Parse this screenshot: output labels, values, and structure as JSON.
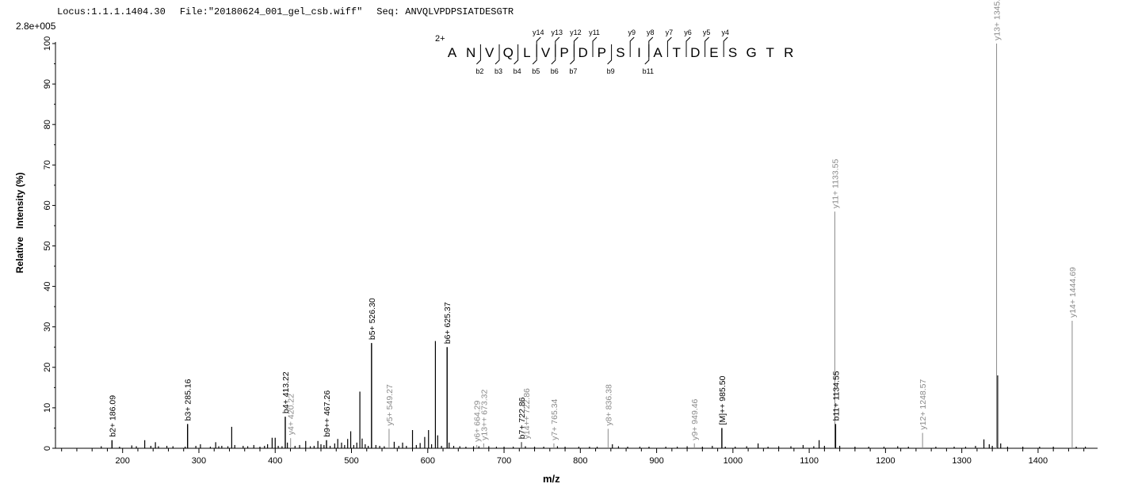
{
  "header": {
    "locus": "Locus:1.1.1.1404.30",
    "file": "File:\"20180624_001_gel_csb.wiff\"",
    "seq": "Seq: ANVQLVPDPSIATDESGTR"
  },
  "colors": {
    "b_ion": "#000000",
    "y_ion": "#8a8a8a",
    "axis": "#000000"
  },
  "chart_data": {
    "type": "bar",
    "title": "",
    "xlabel": "m/z",
    "ylabel": "Relative   Intensity (%)",
    "scale_label": "2.8e+005",
    "xlim": [
      112,
      1478
    ],
    "ylim": [
      0,
      100
    ],
    "x_ticks": [
      200,
      300,
      400,
      500,
      600,
      700,
      800,
      900,
      1000,
      1100,
      1200,
      1300,
      1400
    ],
    "y_ticks": [
      0,
      10,
      20,
      30,
      40,
      50,
      60,
      70,
      80,
      90,
      100
    ],
    "peptide": {
      "charge": "2+",
      "residues": [
        "A",
        "N",
        "V",
        "Q",
        "L",
        "V",
        "P",
        "D",
        "P",
        "S",
        "I",
        "A",
        "T",
        "D",
        "E",
        "S",
        "G",
        "T",
        "R"
      ],
      "b_ions": [
        {
          "label": "b2",
          "after": 2
        },
        {
          "label": "b3",
          "after": 3
        },
        {
          "label": "b4",
          "after": 4
        },
        {
          "label": "b5",
          "after": 5
        },
        {
          "label": "b6",
          "after": 6
        },
        {
          "label": "b7",
          "after": 7
        },
        {
          "label": "b9",
          "after": 9
        },
        {
          "label": "b11",
          "after": 11
        }
      ],
      "y_ions": [
        {
          "label": "y14",
          "after": 5
        },
        {
          "label": "y13",
          "after": 6
        },
        {
          "label": "y12",
          "after": 7
        },
        {
          "label": "y11",
          "after": 8
        },
        {
          "label": "y9",
          "after": 10
        },
        {
          "label": "y8",
          "after": 11
        },
        {
          "label": "y7",
          "after": 12
        },
        {
          "label": "y6",
          "after": 13
        },
        {
          "label": "y5",
          "after": 14
        },
        {
          "label": "y4",
          "after": 15
        }
      ]
    },
    "annotated_peaks": [
      {
        "mz": 186.09,
        "intensity": 2.0,
        "label": "b2+ 186.09",
        "ion": "b"
      },
      {
        "mz": 285.16,
        "intensity": 6.0,
        "label": "b3+ 285.16",
        "ion": "b"
      },
      {
        "mz": 413.22,
        "intensity": 7.8,
        "label": "b4+ 413.22",
        "ion": "b"
      },
      {
        "mz": 420.22,
        "intensity": 2.5,
        "label": "y4+ 420.22",
        "ion": "y"
      },
      {
        "mz": 467.26,
        "intensity": 2.0,
        "label": "b9++ 467.26",
        "ion": "b"
      },
      {
        "mz": 526.3,
        "intensity": 26.0,
        "label": "b5+ 526.30",
        "ion": "b"
      },
      {
        "mz": 549.27,
        "intensity": 4.8,
        "label": "y5+ 549.27",
        "ion": "y"
      },
      {
        "mz": 625.37,
        "intensity": 25.0,
        "label": "b6+ 625.37",
        "ion": "b"
      },
      {
        "mz": 664.29,
        "intensity": 0.8,
        "label": "y6+ 664.29",
        "ion": "y"
      },
      {
        "mz": 673.32,
        "intensity": 1.2,
        "label": "y13++ 673.32",
        "ion": "y"
      },
      {
        "mz": 722.86,
        "intensity": 1.5,
        "label": "b7+ 722.86",
        "ion": "b"
      },
      {
        "mz": 722.86,
        "intensity": 1.5,
        "label": "y14++ 722.86",
        "ion": "y"
      },
      {
        "mz": 765.34,
        "intensity": 1.2,
        "label": "y7+ 765.34",
        "ion": "y"
      },
      {
        "mz": 836.38,
        "intensity": 4.8,
        "label": "y8+ 836.38",
        "ion": "y"
      },
      {
        "mz": 949.46,
        "intensity": 1.2,
        "label": "y9+ 949.46",
        "ion": "y"
      },
      {
        "mz": 985.5,
        "intensity": 5.0,
        "label": "[M]++ 985.50",
        "ion": "b"
      },
      {
        "mz": 1133.55,
        "intensity": 58.5,
        "label": "y11+ 1133.55",
        "ion": "y"
      },
      {
        "mz": 1134.55,
        "intensity": 6.0,
        "label": "b11+ 1134.55",
        "ion": "b"
      },
      {
        "mz": 1248.57,
        "intensity": 3.8,
        "label": "y12+ 1248.57",
        "ion": "y"
      },
      {
        "mz": 1345.62,
        "intensity": 100.0,
        "label": "y13+ 1345.62",
        "ion": "y"
      },
      {
        "mz": 1444.69,
        "intensity": 31.5,
        "label": "y14+ 1444.69",
        "ion": "y"
      }
    ],
    "other_peaks": [
      [
        172,
        0.5
      ],
      [
        196,
        0.4
      ],
      [
        212,
        0.7
      ],
      [
        218,
        0.5
      ],
      [
        229,
        2.0
      ],
      [
        237,
        0.6
      ],
      [
        243,
        1.5
      ],
      [
        247,
        0.5
      ],
      [
        258,
        0.6
      ],
      [
        266,
        0.5
      ],
      [
        282,
        0.4
      ],
      [
        296,
        0.6
      ],
      [
        302,
        1.0
      ],
      [
        315,
        0.4
      ],
      [
        322,
        1.5
      ],
      [
        326,
        0.5
      ],
      [
        330,
        0.6
      ],
      [
        338,
        0.5
      ],
      [
        343,
        5.3
      ],
      [
        347,
        0.8
      ],
      [
        358,
        0.6
      ],
      [
        364,
        0.5
      ],
      [
        372,
        0.8
      ],
      [
        380,
        0.4
      ],
      [
        386,
        0.6
      ],
      [
        390,
        1.0
      ],
      [
        396,
        2.6
      ],
      [
        400,
        2.6
      ],
      [
        404,
        0.6
      ],
      [
        409,
        0.5
      ],
      [
        416,
        1.4
      ],
      [
        426,
        0.6
      ],
      [
        432,
        0.8
      ],
      [
        440,
        1.8
      ],
      [
        446,
        0.5
      ],
      [
        451,
        0.6
      ],
      [
        456,
        1.8
      ],
      [
        460,
        1.0
      ],
      [
        464,
        0.8
      ],
      [
        472,
        0.6
      ],
      [
        478,
        1.2
      ],
      [
        482,
        2.3
      ],
      [
        487,
        1.4
      ],
      [
        491,
        0.8
      ],
      [
        495,
        2.3
      ],
      [
        499,
        4.2
      ],
      [
        503,
        0.8
      ],
      [
        507,
        1.4
      ],
      [
        511,
        14.0
      ],
      [
        514,
        2.4
      ],
      [
        518,
        1.0
      ],
      [
        522,
        0.6
      ],
      [
        532,
        0.8
      ],
      [
        537,
        0.6
      ],
      [
        543,
        0.5
      ],
      [
        556,
        1.6
      ],
      [
        562,
        0.6
      ],
      [
        567,
        1.4
      ],
      [
        572,
        0.6
      ],
      [
        580,
        4.5
      ],
      [
        585,
        0.8
      ],
      [
        590,
        1.3
      ],
      [
        596,
        2.8
      ],
      [
        601,
        4.5
      ],
      [
        605,
        1.0
      ],
      [
        610,
        26.5
      ],
      [
        613,
        3.2
      ],
      [
        618,
        0.6
      ],
      [
        628,
        1.4
      ],
      [
        634,
        0.6
      ],
      [
        642,
        0.5
      ],
      [
        650,
        0.4
      ],
      [
        660,
        0.5
      ],
      [
        667,
        0.5
      ],
      [
        680,
        0.5
      ],
      [
        690,
        0.4
      ],
      [
        700,
        0.4
      ],
      [
        712,
        0.4
      ],
      [
        728,
        0.5
      ],
      [
        740,
        0.4
      ],
      [
        752,
        0.4
      ],
      [
        770,
        0.5
      ],
      [
        780,
        0.4
      ],
      [
        798,
        0.4
      ],
      [
        812,
        0.4
      ],
      [
        822,
        0.4
      ],
      [
        842,
        1.0
      ],
      [
        850,
        0.5
      ],
      [
        862,
        0.4
      ],
      [
        878,
        0.4
      ],
      [
        890,
        0.4
      ],
      [
        912,
        0.4
      ],
      [
        927,
        0.4
      ],
      [
        940,
        0.5
      ],
      [
        960,
        0.4
      ],
      [
        973,
        0.6
      ],
      [
        990,
        0.4
      ],
      [
        1003,
        0.4
      ],
      [
        1018,
        0.5
      ],
      [
        1033,
        1.2
      ],
      [
        1046,
        0.4
      ],
      [
        1060,
        0.5
      ],
      [
        1076,
        0.5
      ],
      [
        1092,
        0.8
      ],
      [
        1106,
        0.5
      ],
      [
        1113,
        2.0
      ],
      [
        1120,
        0.6
      ],
      [
        1140,
        0.6
      ],
      [
        1160,
        0.4
      ],
      [
        1178,
        0.4
      ],
      [
        1198,
        0.4
      ],
      [
        1216,
        0.5
      ],
      [
        1230,
        0.4
      ],
      [
        1266,
        0.4
      ],
      [
        1290,
        0.4
      ],
      [
        1305,
        0.4
      ],
      [
        1318,
        0.6
      ],
      [
        1329,
        2.2
      ],
      [
        1336,
        1.0
      ],
      [
        1340,
        0.6
      ],
      [
        1347,
        18.0
      ],
      [
        1351,
        1.2
      ],
      [
        1360,
        0.4
      ],
      [
        1380,
        0.4
      ],
      [
        1402,
        0.4
      ],
      [
        1420,
        0.4
      ],
      [
        1450,
        0.4
      ],
      [
        1462,
        0.4
      ]
    ]
  }
}
